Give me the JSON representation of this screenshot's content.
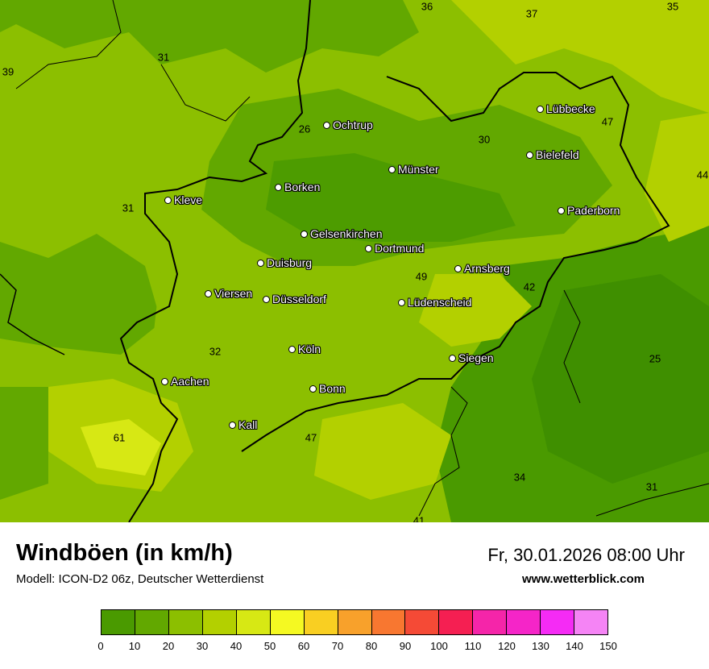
{
  "title": "Windböen (in km/h)",
  "model": "Modell: ICON-D2 06z, Deutscher Wetterdienst",
  "datetime": "Fr, 30.01.2026 08:00 Uhr",
  "website": "www.wetterblick.com",
  "legend": {
    "colors": [
      "#4a9a00",
      "#62a800",
      "#8cbf00",
      "#b3d000",
      "#d7e814",
      "#f5f922",
      "#f9cf22",
      "#f8a12b",
      "#f87730",
      "#f54a36",
      "#f51f52",
      "#f525a9",
      "#f525c8",
      "#f52bf5",
      "#f584f5"
    ],
    "ticks": [
      "0",
      "10",
      "20",
      "30",
      "40",
      "50",
      "60",
      "70",
      "80",
      "90",
      "100",
      "110",
      "120",
      "130",
      "140",
      "150"
    ]
  },
  "cities": [
    {
      "name": "Ochtrup"
    },
    {
      "name": "Lübbecke"
    },
    {
      "name": "Bielefeld"
    },
    {
      "name": "Münster"
    },
    {
      "name": "Borken"
    },
    {
      "name": "Kleve"
    },
    {
      "name": "Paderborn"
    },
    {
      "name": "Gelsenkirchen"
    },
    {
      "name": "Dortmund"
    },
    {
      "name": "Duisburg"
    },
    {
      "name": "Arnsberg"
    },
    {
      "name": "Viersen"
    },
    {
      "name": "Düsseldorf"
    },
    {
      "name": "Lüdenscheid"
    },
    {
      "name": "Köln"
    },
    {
      "name": "Siegen"
    },
    {
      "name": "Aachen"
    },
    {
      "name": "Bonn"
    },
    {
      "name": "Kall"
    }
  ],
  "values": [
    "36",
    "37",
    "35",
    "31",
    "39",
    "26",
    "30",
    "47",
    "44",
    "31",
    "49",
    "42",
    "32",
    "25",
    "61",
    "47",
    "34",
    "31",
    "41"
  ]
}
